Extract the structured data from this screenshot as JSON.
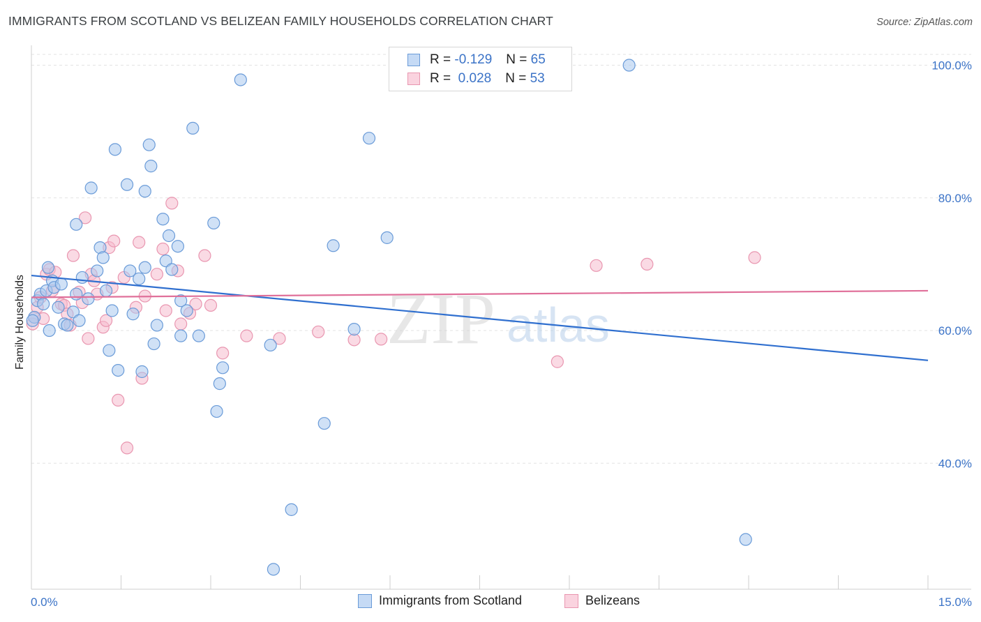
{
  "header": {
    "title": "IMMIGRANTS FROM SCOTLAND VS BELIZEAN FAMILY HOUSEHOLDS CORRELATION CHART",
    "source": "Source: ZipAtlas.com"
  },
  "legend": {
    "rows": [
      {
        "r_label": "R =",
        "r_value": "-0.129",
        "n_label": "N =",
        "n_value": "65"
      },
      {
        "r_label": "R =",
        "r_value": "0.028",
        "n_label": "N =",
        "n_value": "53"
      }
    ]
  },
  "bottom_legend": {
    "items": [
      {
        "label": "Immigrants from Scotland"
      },
      {
        "label": "Belizeans"
      }
    ]
  },
  "watermark": {
    "zip": "ZIP",
    "atlas": "atlas"
  },
  "colors": {
    "blue_fill": "#aac8ef",
    "blue_stroke": "#6a9bd8",
    "blue_line": "#2f6fcf",
    "pink_fill": "#f6bccd",
    "pink_stroke": "#e996b0",
    "pink_line": "#e0709a",
    "tick_text": "#3b73c7",
    "grid": "#e3e3e3"
  },
  "chart_data": {
    "type": "scatter",
    "title": "IMMIGRANTS FROM SCOTLAND VS BELIZEAN FAMILY HOUSEHOLDS CORRELATION CHART",
    "xlabel": "",
    "ylabel": "Family Households",
    "xlim": [
      0,
      15
    ],
    "ylim": [
      21,
      103
    ],
    "x_tick_labels": [
      "0.0%",
      "15.0%"
    ],
    "y_ticks": [
      40,
      60,
      80,
      100
    ],
    "y_tick_labels": [
      "40.0%",
      "60.0%",
      "80.0%",
      "100.0%"
    ],
    "grid": true,
    "legend_position": "top-center",
    "series": [
      {
        "name": "Immigrants from Scotland",
        "color": "#aac8ef",
        "trend": {
          "x": [
            0,
            15
          ],
          "y": [
            68.3,
            55.5
          ]
        },
        "points": [
          [
            0.05,
            62.0
          ],
          [
            0.1,
            64.5
          ],
          [
            0.15,
            65.5
          ],
          [
            0.2,
            64.0
          ],
          [
            0.25,
            66.0
          ],
          [
            0.28,
            69.5
          ],
          [
            0.3,
            60.0
          ],
          [
            0.35,
            67.5
          ],
          [
            0.38,
            66.5
          ],
          [
            0.45,
            63.5
          ],
          [
            0.5,
            67.0
          ],
          [
            0.55,
            61.0
          ],
          [
            0.6,
            60.8
          ],
          [
            0.7,
            62.8
          ],
          [
            0.75,
            65.5
          ],
          [
            0.8,
            61.5
          ],
          [
            0.85,
            68.0
          ],
          [
            0.95,
            64.8
          ],
          [
            0.75,
            76.0
          ],
          [
            1.0,
            81.5
          ],
          [
            1.1,
            69.0
          ],
          [
            1.15,
            72.5
          ],
          [
            1.2,
            71.0
          ],
          [
            1.25,
            66.0
          ],
          [
            1.3,
            57.0
          ],
          [
            1.35,
            63.0
          ],
          [
            1.4,
            87.3
          ],
          [
            1.45,
            54.0
          ],
          [
            1.6,
            82.0
          ],
          [
            1.65,
            69.0
          ],
          [
            1.7,
            62.5
          ],
          [
            1.8,
            67.8
          ],
          [
            1.85,
            53.8
          ],
          [
            1.9,
            69.5
          ],
          [
            1.9,
            81.0
          ],
          [
            1.97,
            88.0
          ],
          [
            2.0,
            84.8
          ],
          [
            2.05,
            58.0
          ],
          [
            2.1,
            60.8
          ],
          [
            2.2,
            76.8
          ],
          [
            2.25,
            70.5
          ],
          [
            2.3,
            74.3
          ],
          [
            2.35,
            69.2
          ],
          [
            2.45,
            72.7
          ],
          [
            2.5,
            64.5
          ],
          [
            2.5,
            59.2
          ],
          [
            2.6,
            63.0
          ],
          [
            2.7,
            90.5
          ],
          [
            2.8,
            59.2
          ],
          [
            3.05,
            76.2
          ],
          [
            3.1,
            47.8
          ],
          [
            3.15,
            52.0
          ],
          [
            3.2,
            54.4
          ],
          [
            3.5,
            97.8
          ],
          [
            4.05,
            24.0
          ],
          [
            4.0,
            57.8
          ],
          [
            4.35,
            33.0
          ],
          [
            4.9,
            46.0
          ],
          [
            5.05,
            72.8
          ],
          [
            5.4,
            60.2
          ],
          [
            5.65,
            89.0
          ],
          [
            5.95,
            74.0
          ],
          [
            10.0,
            100.0
          ],
          [
            11.95,
            28.5
          ],
          [
            0.02,
            61.5
          ]
        ]
      },
      {
        "name": "Belizeans",
        "color": "#f6bccd",
        "trend": {
          "x": [
            0,
            15
          ],
          "y": [
            65.0,
            66.0
          ]
        },
        "points": [
          [
            0.02,
            61.0
          ],
          [
            0.05,
            62.0
          ],
          [
            0.1,
            63.5
          ],
          [
            0.15,
            65.0
          ],
          [
            0.2,
            61.8
          ],
          [
            0.25,
            68.5
          ],
          [
            0.3,
            69.2
          ],
          [
            0.35,
            66.0
          ],
          [
            0.4,
            68.8
          ],
          [
            0.5,
            64.0
          ],
          [
            0.55,
            63.8
          ],
          [
            0.6,
            62.5
          ],
          [
            0.65,
            60.8
          ],
          [
            0.7,
            71.3
          ],
          [
            0.8,
            65.8
          ],
          [
            0.85,
            64.2
          ],
          [
            0.9,
            77.0
          ],
          [
            0.95,
            58.8
          ],
          [
            1.0,
            68.5
          ],
          [
            1.05,
            67.5
          ],
          [
            1.1,
            65.5
          ],
          [
            1.2,
            60.5
          ],
          [
            1.25,
            61.5
          ],
          [
            1.3,
            72.5
          ],
          [
            1.35,
            66.5
          ],
          [
            1.38,
            73.5
          ],
          [
            1.45,
            49.5
          ],
          [
            1.55,
            68.0
          ],
          [
            1.6,
            42.3
          ],
          [
            1.75,
            63.5
          ],
          [
            1.8,
            73.3
          ],
          [
            1.85,
            52.8
          ],
          [
            1.9,
            65.2
          ],
          [
            2.1,
            68.5
          ],
          [
            2.2,
            72.3
          ],
          [
            2.25,
            63.0
          ],
          [
            2.35,
            79.2
          ],
          [
            2.45,
            69.0
          ],
          [
            2.5,
            61.0
          ],
          [
            2.65,
            62.6
          ],
          [
            2.75,
            64.0
          ],
          [
            2.9,
            71.3
          ],
          [
            3.0,
            63.8
          ],
          [
            3.2,
            56.6
          ],
          [
            3.6,
            59.2
          ],
          [
            4.15,
            58.8
          ],
          [
            4.8,
            59.8
          ],
          [
            5.4,
            58.6
          ],
          [
            5.85,
            58.7
          ],
          [
            8.8,
            55.3
          ],
          [
            9.45,
            69.8
          ],
          [
            10.3,
            70.0
          ],
          [
            12.1,
            71.0
          ]
        ]
      }
    ]
  }
}
